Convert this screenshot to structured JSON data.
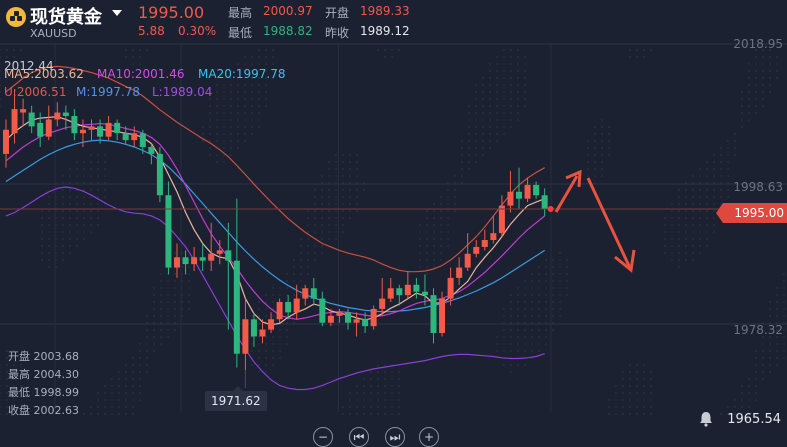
{
  "header": {
    "title": "现货黄金",
    "symbol": "XAUUSD",
    "price": "1995.00",
    "change": "5.88",
    "change_pct": "0.30%",
    "high_label": "最高",
    "high": "2000.97",
    "open_label": "开盘",
    "open": "1989.33",
    "low_label": "最低",
    "low": "1988.82",
    "prev_label": "昨收",
    "prev": "1989.12"
  },
  "indicators": {
    "ma5": "MA5:2003.62",
    "ma10": "MA10:2001.46",
    "ma20": "MA20:1997.78",
    "u": "U:2006.51",
    "m": "M:1997.78",
    "l": "L:1989.04"
  },
  "colors": {
    "up": "#f25a4a",
    "down": "#2fb57e",
    "ma5": "#e9b6a0",
    "ma10": "#c43bd6",
    "ma20": "#3c9be3",
    "boll_u": "#c9503e",
    "boll_l": "#8a3fd6",
    "arrow": "#e7533f"
  },
  "y_axis": {
    "top": "2018.95",
    "mid": "1998.63",
    "low": "1978.32",
    "current": "1995.00"
  },
  "labels": {
    "high_marker": "2012.44",
    "low_marker": "1971.62",
    "bottom_right": "1965.54"
  },
  "ohlc_panel": [
    {
      "label": "开盘",
      "value": "2003.68"
    },
    {
      "label": "最高",
      "value": "2004.30"
    },
    {
      "label": "最低",
      "value": "1998.99"
    },
    {
      "label": "收盘",
      "value": "2002.63"
    }
  ],
  "controls": {
    "zoom_out": "−",
    "prev": "⏮",
    "next": "⏭",
    "zoom_in": "+"
  },
  "chart_data": {
    "type": "candlestick",
    "ylim": [
      1965.54,
      2018.95
    ],
    "candles": [
      [
        2003.0,
        2006.5,
        2001.0,
        2008.0
      ],
      [
        2006.0,
        2009.5,
        2004.5,
        2012.4
      ],
      [
        2009.0,
        2009.5,
        2007.0,
        2011.0
      ],
      [
        2009.0,
        2007.0,
        2006.0,
        2010.0
      ],
      [
        2007.5,
        2005.5,
        2004.0,
        2009.0
      ],
      [
        2005.5,
        2008.0,
        2005.0,
        2010.0
      ],
      [
        2008.0,
        2009.0,
        2007.0,
        2010.5
      ],
      [
        2009.0,
        2008.5,
        2006.5,
        2010.0
      ],
      [
        2008.5,
        2006.0,
        2005.0,
        2009.5
      ],
      [
        2006.0,
        2006.5,
        2004.0,
        2008.0
      ],
      [
        2006.5,
        2007.0,
        2005.0,
        2008.0
      ],
      [
        2007.0,
        2005.5,
        2004.5,
        2008.0
      ],
      [
        2005.5,
        2007.5,
        2005.0,
        2008.5
      ],
      [
        2007.5,
        2006.0,
        2005.0,
        2008.0
      ],
      [
        2006.0,
        2005.0,
        2004.5,
        2007.0
      ],
      [
        2005.0,
        2006.0,
        2004.0,
        2007.0
      ],
      [
        2006.0,
        2004.0,
        2003.0,
        2006.5
      ],
      [
        2004.0,
        2003.0,
        2001.5,
        2004.5
      ],
      [
        2003.0,
        1997.0,
        1996.0,
        2004.0
      ],
      [
        1997.0,
        1986.5,
        1985.5,
        1999.0
      ],
      [
        1986.5,
        1988.0,
        1985.0,
        1990.0
      ],
      [
        1988.0,
        1987.0,
        1985.5,
        1989.0
      ],
      [
        1987.0,
        1988.0,
        1986.0,
        1989.5
      ],
      [
        1988.0,
        1987.5,
        1986.0,
        1990.0
      ],
      [
        1987.5,
        1988.5,
        1986.0,
        1993.0
      ],
      [
        1988.5,
        1989.0,
        1987.0,
        1990.5
      ],
      [
        1989.0,
        1987.5,
        1977.5,
        1993.0
      ],
      [
        1987.5,
        1974.0,
        1972.0,
        1996.5
      ],
      [
        1974.0,
        1979.0,
        1971.6,
        1982.0
      ],
      [
        1979.0,
        1976.5,
        1975.0,
        1980.0
      ],
      [
        1976.5,
        1977.5,
        1975.5,
        1979.0
      ],
      [
        1977.5,
        1979.0,
        1977.0,
        1980.0
      ],
      [
        1979.0,
        1981.5,
        1978.5,
        1982.0
      ],
      [
        1981.5,
        1980.0,
        1979.0,
        1982.5
      ],
      [
        1980.0,
        1982.0,
        1979.0,
        1984.0
      ],
      [
        1982.0,
        1983.5,
        1981.0,
        1984.0
      ],
      [
        1983.5,
        1982.0,
        1981.0,
        1985.0
      ],
      [
        1982.0,
        1978.5,
        1978.0,
        1983.0
      ],
      [
        1978.5,
        1979.5,
        1978.0,
        1980.5
      ],
      [
        1979.5,
        1980.0,
        1978.5,
        1980.5
      ],
      [
        1980.0,
        1978.5,
        1977.5,
        1980.5
      ],
      [
        1978.5,
        1979.0,
        1976.5,
        1980.0
      ],
      [
        1979.0,
        1978.0,
        1977.0,
        1980.0
      ],
      [
        1978.0,
        1980.5,
        1977.5,
        1981.0
      ],
      [
        1980.5,
        1982.0,
        1979.5,
        1985.0
      ],
      [
        1982.0,
        1983.5,
        1981.5,
        1985.0
      ],
      [
        1983.5,
        1982.5,
        1981.0,
        1984.0
      ],
      [
        1982.5,
        1984.0,
        1982.0,
        1986.0
      ],
      [
        1984.0,
        1983.0,
        1982.0,
        1985.0
      ],
      [
        1983.0,
        1982.5,
        1981.0,
        1985.5
      ],
      [
        1982.5,
        1977.0,
        1975.5,
        1983.5
      ],
      [
        1977.0,
        1982.0,
        1976.5,
        1983.0
      ],
      [
        1982.0,
        1985.0,
        1981.0,
        1986.5
      ],
      [
        1985.0,
        1986.5,
        1984.0,
        1988.0
      ],
      [
        1986.5,
        1988.5,
        1986.0,
        1991.5
      ],
      [
        1988.5,
        1989.5,
        1988.0,
        1990.5
      ],
      [
        1989.5,
        1990.5,
        1989.0,
        1992.0
      ],
      [
        1990.5,
        1991.5,
        1990.0,
        1994.0
      ],
      [
        1991.5,
        1995.5,
        1991.0,
        1997.0
      ],
      [
        1995.5,
        1997.5,
        1994.5,
        2000.5
      ],
      [
        1997.5,
        1996.5,
        1995.0,
        2001.0
      ],
      [
        1996.5,
        1998.5,
        1996.0,
        1999.5
      ],
      [
        1998.5,
        1997.0,
        1996.5,
        1999.0
      ],
      [
        1997.0,
        1995.0,
        1994.0,
        1998.0
      ]
    ],
    "ma5": [
      2005.0,
      2006.2,
      2007.1,
      2007.9,
      2008.2,
      2008.3,
      2008.4,
      2008.0,
      2007.5,
      2007.0,
      2006.8,
      2006.6,
      2006.4,
      2006.2,
      2006.0,
      2005.8,
      2005.4,
      2004.5,
      2002.5,
      2000.0,
      1997.5,
      1994.5,
      1992.0,
      1990.0,
      1988.6,
      1988.0,
      1987.8,
      1985.5,
      1982.0,
      1979.8,
      1978.6,
      1978.2,
      1978.4,
      1979.3,
      1980.0,
      1980.5,
      1981.2,
      1980.9,
      1980.2,
      1979.9,
      1979.6,
      1979.2,
      1978.9,
      1979.2,
      1979.8,
      1980.6,
      1981.2,
      1982.0,
      1982.8,
      1982.4,
      1981.3,
      1981.4,
      1982.2,
      1983.4,
      1984.5,
      1986.5,
      1988.0,
      1989.4,
      1991.0,
      1992.8,
      1994.2,
      1995.5,
      1996.0,
      1996.5
    ],
    "ma10": [
      2002.0,
      2003.0,
      2004.0,
      2004.8,
      2005.5,
      2006.0,
      2006.4,
      2006.8,
      2007.0,
      2007.2,
      2007.3,
      2007.4,
      2007.3,
      2007.0,
      2006.7,
      2006.4,
      2006.0,
      2005.4,
      2004.4,
      2002.8,
      2000.8,
      1998.4,
      1996.0,
      1993.6,
      1991.4,
      1989.6,
      1988.0,
      1986.4,
      1984.6,
      1983.0,
      1981.6,
      1980.5,
      1979.6,
      1979.2,
      1979.0,
      1979.2,
      1979.5,
      1979.8,
      1980.0,
      1980.1,
      1980.0,
      1979.8,
      1979.6,
      1979.4,
      1979.5,
      1979.8,
      1980.2,
      1980.8,
      1981.3,
      1981.6,
      1981.8,
      1982.0,
      1982.5,
      1983.0,
      1983.8,
      1984.8,
      1985.8,
      1987.0,
      1988.2,
      1989.5,
      1990.8,
      1992.0,
      1993.0,
      1994.0
    ],
    "ma20": [
      1999.0,
      1999.8,
      2000.6,
      2001.4,
      2002.2,
      2002.9,
      2003.5,
      2004.0,
      2004.4,
      2004.7,
      2004.9,
      2005.0,
      2004.9,
      2004.7,
      2004.4,
      2004.0,
      2003.5,
      2002.9,
      2002.1,
      2001.1,
      1999.9,
      1998.6,
      1997.2,
      1995.8,
      1994.4,
      1993.0,
      1991.6,
      1990.2,
      1988.9,
      1987.7,
      1986.6,
      1985.6,
      1984.7,
      1983.9,
      1983.2,
      1982.6,
      1982.1,
      1981.7,
      1981.3,
      1981.0,
      1980.7,
      1980.5,
      1980.3,
      1980.2,
      1980.1,
      1980.1,
      1980.2,
      1980.3,
      1980.5,
      1980.7,
      1981.0,
      1981.3,
      1981.7,
      1982.1,
      1982.6,
      1983.1,
      1983.7,
      1984.3,
      1985.0,
      1985.8,
      1986.6,
      1987.4,
      1988.2,
      1989.0
    ],
    "boll_u": [
      2012.0,
      2013.0,
      2014.0,
      2014.8,
      2015.3,
      2015.6,
      2015.7,
      2015.6,
      2015.4,
      2015.1,
      2014.8,
      2014.4,
      2014.0,
      2013.4,
      2012.8,
      2012.2,
      2011.4,
      2010.4,
      2009.4,
      2008.5,
      2007.6,
      2006.8,
      2006.0,
      2005.2,
      2004.5,
      2003.6,
      2002.6,
      2001.3,
      2000.0,
      1998.6,
      1997.3,
      1996.0,
      1994.8,
      1993.6,
      1992.6,
      1991.6,
      1990.8,
      1990.0,
      1989.5,
      1989.0,
      1988.6,
      1988.3,
      1988.0,
      1987.6,
      1987.0,
      1986.5,
      1986.1,
      1985.9,
      1985.9,
      1986.0,
      1986.3,
      1986.8,
      1987.6,
      1988.6,
      1989.8,
      1991.0,
      1992.4,
      1994.0,
      1995.6,
      1997.2,
      1998.5,
      1999.5,
      2000.3,
      2001.0
    ],
    "boll_l": [
      1994.0,
      1994.5,
      1995.2,
      1996.0,
      1996.8,
      1997.5,
      1998.0,
      1998.2,
      1998.0,
      1997.6,
      1997.0,
      1996.3,
      1995.6,
      1995.0,
      1994.6,
      1994.4,
      1994.3,
      1994.0,
      1993.4,
      1992.4,
      1991.0,
      1989.5,
      1987.6,
      1985.4,
      1983.2,
      1981.0,
      1978.8,
      1976.6,
      1974.6,
      1972.8,
      1971.4,
      1970.2,
      1969.4,
      1969.0,
      1968.8,
      1968.8,
      1969.0,
      1969.4,
      1969.9,
      1970.4,
      1970.8,
      1971.2,
      1971.5,
      1971.8,
      1972.0,
      1972.2,
      1972.4,
      1972.6,
      1972.8,
      1973.0,
      1973.3,
      1973.6,
      1973.8,
      1973.9,
      1973.9,
      1973.8,
      1973.7,
      1973.6,
      1973.4,
      1973.3,
      1973.3,
      1973.4,
      1973.6,
      1974.0
    ]
  }
}
